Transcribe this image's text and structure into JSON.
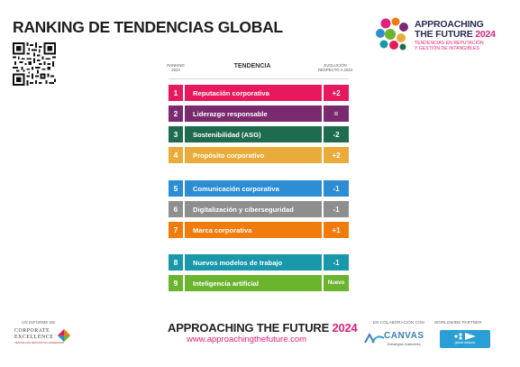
{
  "page": {
    "title": "RANKING DE TENDENCIAS GLOBAL"
  },
  "brand": {
    "line1": "APPROACHING",
    "line2_text": "THE FUTURE ",
    "line2_year": "2024",
    "sub1": "TENDENCIAS EN REPUTACIÓN",
    "sub2": "Y GESTIÓN DE INTANGIBLES",
    "colors": {
      "navy": "#2b2b55",
      "pink": "#e0227a"
    }
  },
  "table": {
    "header": {
      "rank_line1": "RANKING",
      "rank_line2": "2024",
      "trend": "TENDENCIA",
      "evo_line1": "EVOLUCIÓN",
      "evo_line2": "RESPECTO A 2023"
    },
    "rows": [
      {
        "rank": "1",
        "label": "Reputación corporativa",
        "change": "+2",
        "color": "#e8185f"
      },
      {
        "rank": "2",
        "label": "Liderazgo responsable",
        "change": "=",
        "color": "#7a2a6e"
      },
      {
        "rank": "3",
        "label": "Sostenibilidad (ASG)",
        "change": "-2",
        "color": "#1e6b4f"
      },
      {
        "rank": "4",
        "label": "Propósito corporativo",
        "change": "+2",
        "color": "#e9ab3a"
      },
      {
        "rank": "5",
        "label": "Comunicación corporativa",
        "change": "-1",
        "color": "#2c8cd4"
      },
      {
        "rank": "6",
        "label": "Digitalización y ciberseguridad",
        "change": "-1",
        "color": "#8e8e8e"
      },
      {
        "rank": "7",
        "label": "Marca corporativa",
        "change": "+1",
        "color": "#f07c0e"
      },
      {
        "rank": "8",
        "label": "Nuevos modelos de trabajo",
        "change": "-1",
        "color": "#1898aa"
      },
      {
        "rank": "9",
        "label": "Inteligencia artificial",
        "change": "Nuevo",
        "color": "#6bb42e"
      }
    ]
  },
  "footer": {
    "report_label": "UN INFORME DE",
    "ce_line1": "CORPORATE",
    "ce_line2": "EXCELLENCE",
    "ce_line3": "CENTRE FOR REPUTATION LEADERSHIP",
    "title_text": "APPROACHING THE FUTURE ",
    "title_year": "2024",
    "url": "www.approachingthefuture.com",
    "collab_label": "EN COLABORACIÓN CON",
    "canvas_name": "CANVAS",
    "canvas_sub": "Estrategias Sostenibles",
    "partner_label": "WORLDWIDE PARTNER",
    "gba_text": "global alliance"
  }
}
